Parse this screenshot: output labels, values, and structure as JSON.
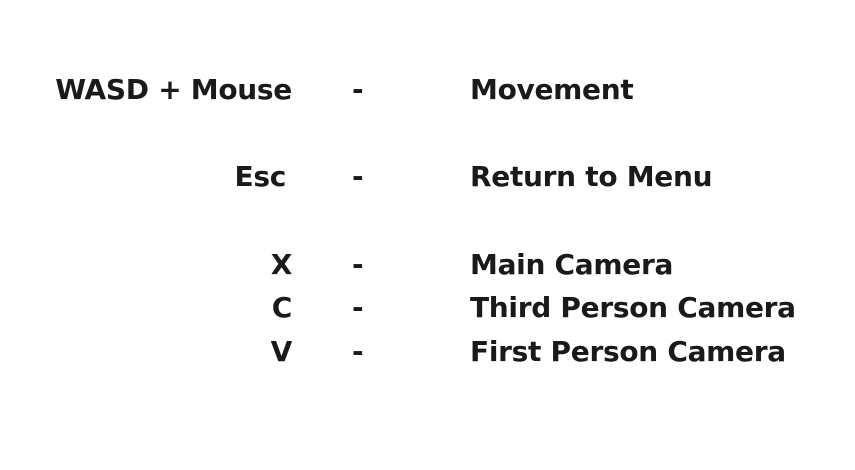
{
  "controls": [
    {
      "key": "WASD + Mouse",
      "separator": "-",
      "action": "Movement"
    },
    {
      "key": "Esc",
      "separator": "-",
      "action": "Return to Menu"
    },
    {
      "key": "X",
      "separator": "-",
      "action": "Main Camera"
    },
    {
      "key": "C",
      "separator": "-",
      "action": "Third Person Camera"
    },
    {
      "key": "V",
      "separator": "-",
      "action": "First Person Camera"
    }
  ],
  "colors": {
    "background": "#ffffff",
    "text": "#1a1a1a"
  }
}
